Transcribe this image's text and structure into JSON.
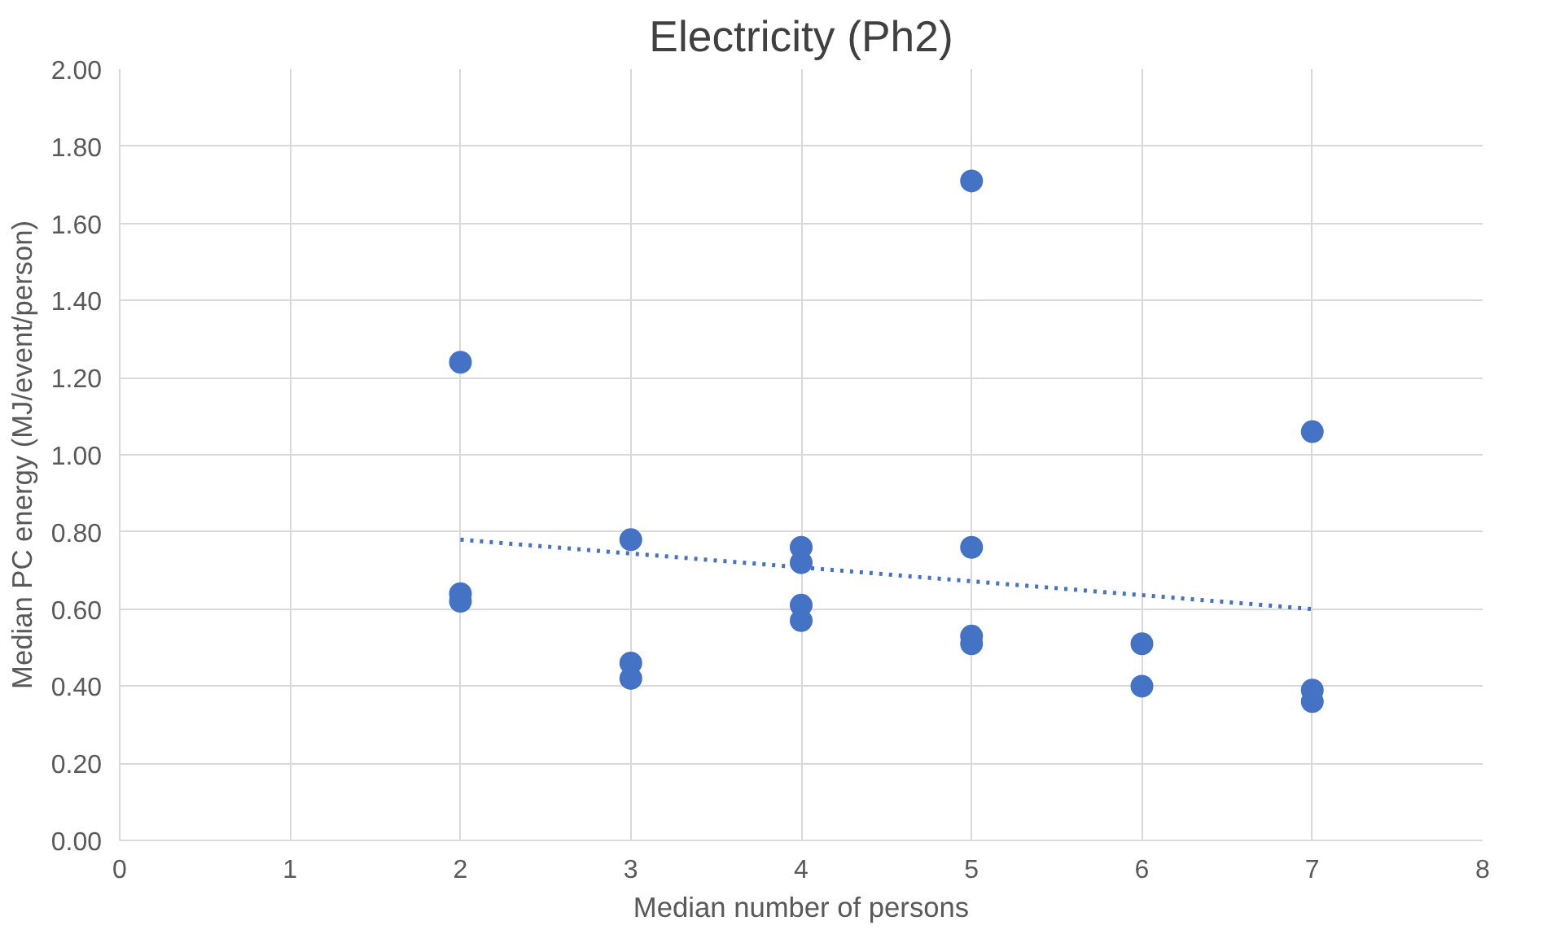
{
  "chart_data": {
    "type": "scatter",
    "title": "Electricity (Ph2)",
    "xlabel": "Median number of persons",
    "ylabel": "Median PC energy (MJ/event/person)",
    "xlim": [
      0,
      8
    ],
    "xticks": [
      0,
      1,
      2,
      3,
      4,
      5,
      6,
      7,
      8
    ],
    "ylim": [
      0,
      2
    ],
    "yticks": [
      {
        "value": 0,
        "label": "0.00"
      },
      {
        "value": 0.2,
        "label": "0.20"
      },
      {
        "value": 0.4,
        "label": "0.40"
      },
      {
        "value": 0.6,
        "label": "0.60"
      },
      {
        "value": 0.8,
        "label": "0.80"
      },
      {
        "value": 1.0,
        "label": "1.00"
      },
      {
        "value": 1.2,
        "label": "1.20"
      },
      {
        "value": 1.4,
        "label": "1.40"
      },
      {
        "value": 1.6,
        "label": "1.60"
      },
      {
        "value": 1.8,
        "label": "1.80"
      },
      {
        "value": 2.0,
        "label": "2.00"
      }
    ],
    "grid": true,
    "marker": "circle",
    "series": [
      {
        "color": "#4472c4",
        "x": [
          2,
          2,
          2,
          3,
          3,
          3,
          4,
          4,
          4,
          4,
          5,
          5,
          5,
          5,
          6,
          6,
          7,
          7,
          7
        ],
        "values": [
          1.24,
          0.64,
          0.62,
          0.78,
          0.46,
          0.42,
          0.76,
          0.72,
          0.61,
          0.57,
          1.71,
          0.76,
          0.53,
          0.51,
          0.51,
          0.4,
          1.06,
          0.39,
          0.36
        ]
      },
      {
        "type": "line",
        "color": "#4472c4",
        "line_style": "dotted",
        "marker": "none",
        "x": [
          2,
          7
        ],
        "values": [
          0.78,
          0.6
        ]
      }
    ]
  }
}
